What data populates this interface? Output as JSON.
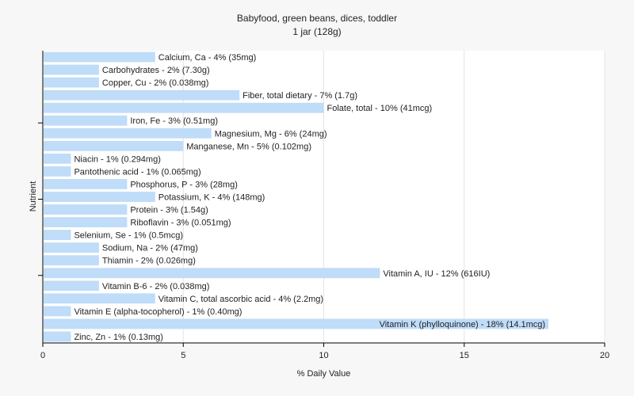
{
  "chart_data": {
    "type": "bar",
    "orientation": "horizontal",
    "title": "Babyfood, green beans, dices, toddler",
    "subtitle": "1 jar (128g)",
    "xlabel": "% Daily Value",
    "ylabel": "Nutrient",
    "xlim": [
      0,
      20
    ],
    "xticks": [
      0,
      5,
      10,
      15,
      20
    ],
    "grid": true,
    "bar_color": "#bfdcf9",
    "categories": [
      "Calcium, Ca",
      "Carbohydrates",
      "Copper, Cu",
      "Fiber, total dietary",
      "Folate, total",
      "Iron, Fe",
      "Magnesium, Mg",
      "Manganese, Mn",
      "Niacin",
      "Pantothenic acid",
      "Phosphorus, P",
      "Potassium, K",
      "Protein",
      "Riboflavin",
      "Selenium, Se",
      "Sodium, Na",
      "Thiamin",
      "Vitamin A, IU",
      "Vitamin B-6",
      "Vitamin C, total ascorbic acid",
      "Vitamin E (alpha-tocopherol)",
      "Vitamin K (phylloquinone)",
      "Zinc, Zn"
    ],
    "values": [
      4,
      2,
      2,
      7,
      10,
      3,
      6,
      5,
      1,
      1,
      3,
      4,
      3,
      3,
      1,
      2,
      2,
      12,
      2,
      4,
      1,
      18,
      1
    ],
    "labels": [
      "Calcium, Ca - 4% (35mg)",
      "Carbohydrates - 2% (7.30g)",
      "Copper, Cu - 2% (0.038mg)",
      "Fiber, total dietary - 7% (1.7g)",
      "Folate, total - 10% (41mcg)",
      "Iron, Fe - 3% (0.51mg)",
      "Magnesium, Mg - 6% (24mg)",
      "Manganese, Mn - 5% (0.102mg)",
      "Niacin - 1% (0.294mg)",
      "Pantothenic acid - 1% (0.065mg)",
      "Phosphorus, P - 3% (28mg)",
      "Potassium, K - 4% (148mg)",
      "Protein - 3% (1.54g)",
      "Riboflavin - 3% (0.051mg)",
      "Selenium, Se - 1% (0.5mcg)",
      "Sodium, Na - 2% (47mg)",
      "Thiamin - 2% (0.026mg)",
      "Vitamin A, IU - 12% (616IU)",
      "Vitamin B-6 - 2% (0.038mg)",
      "Vitamin C, total ascorbic acid - 4% (2.2mg)",
      "Vitamin E (alpha-tocopherol) - 1% (0.40mg)",
      "Vitamin K (phylloquinone) - 18% (14.1mcg)",
      "Zinc, Zn - 1% (0.13mg)"
    ]
  }
}
